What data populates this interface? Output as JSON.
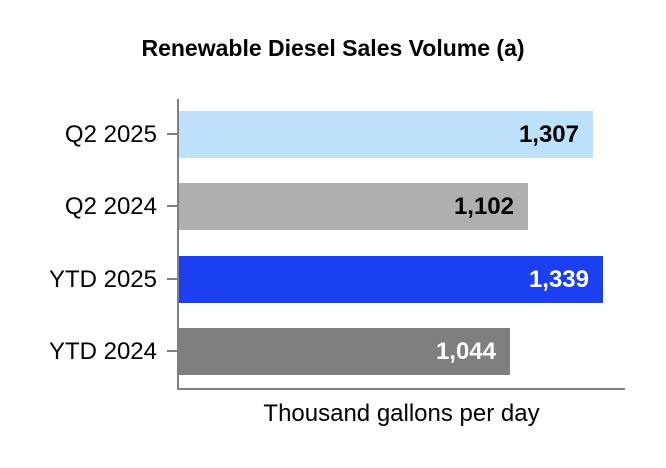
{
  "chart_data": {
    "type": "bar",
    "orientation": "horizontal",
    "title": "Renewable Diesel Sales Volume (a)",
    "xlabel": "Thousand gallons per day",
    "ylabel": "",
    "categories": [
      "Q2 2025",
      "Q2 2024",
      "YTD 2025",
      "YTD 2024"
    ],
    "values": [
      1307,
      1102,
      1339,
      1044
    ],
    "value_labels": [
      "1,307",
      "1,102",
      "1,339",
      "1,044"
    ],
    "bar_colors": [
      "#BDE1FB",
      "#AFAFAF",
      "#1A40F2",
      "#7F7F7F"
    ],
    "value_label_colors": [
      "#000000",
      "#000000",
      "#FFFFFF",
      "#FFFFFF"
    ],
    "xlim": [
      0,
      1410
    ],
    "grid": false,
    "legend": "none",
    "axis_color": "#808080",
    "value_labels_position": "inside-end"
  }
}
